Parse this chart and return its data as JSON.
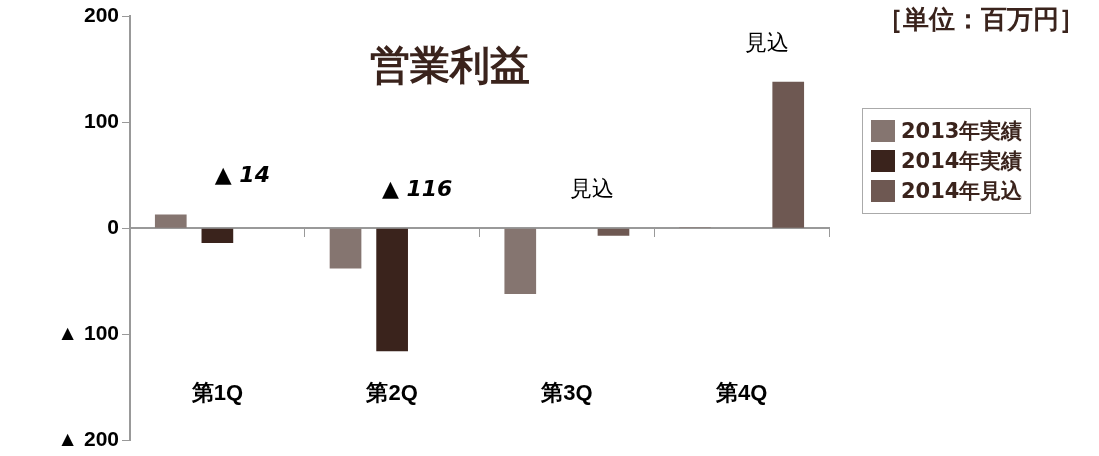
{
  "chart_data": {
    "type": "bar",
    "title": "営業利益",
    "categories": [
      "第1Q",
      "第2Q",
      "第3Q",
      "第4Q"
    ],
    "series": [
      {
        "name": "2013年実績",
        "color": "#857570",
        "values": [
          13,
          -38,
          -62,
          1
        ]
      },
      {
        "name": "2014年実績",
        "color": "#3a231c",
        "values": [
          -14,
          -116,
          null,
          null
        ]
      },
      {
        "name": "2014年見込",
        "color": "#6e5852",
        "values": [
          null,
          null,
          -7,
          138
        ]
      }
    ],
    "ylim": [
      -200,
      200
    ],
    "yticks": [
      {
        "value": -200,
        "label": "▲ 200"
      },
      {
        "value": -100,
        "label": "▲ 100"
      },
      0,
      100,
      200
    ],
    "legend": "right",
    "annotations": [
      "［単位：百万円］",
      "▲ 14",
      "▲ 116",
      "見込",
      "見込"
    ]
  }
}
